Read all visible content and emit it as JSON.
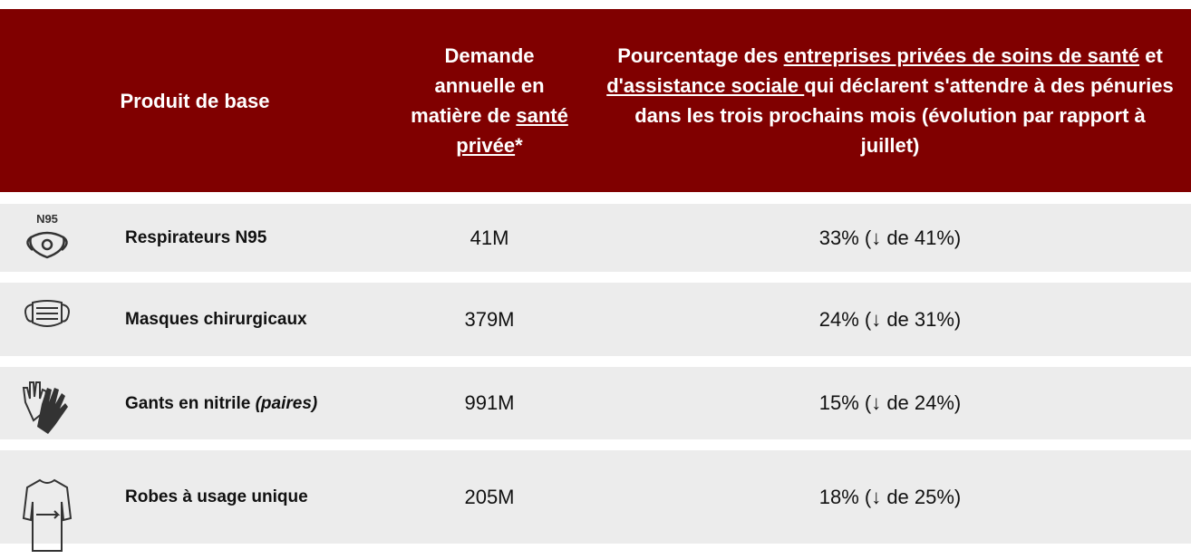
{
  "table": {
    "header": [
      {
        "parts": [
          {
            "text": "Produit de base",
            "underline": false
          }
        ]
      },
      {
        "parts": [
          {
            "text": "Demande annuelle en matière de ",
            "underline": false
          },
          {
            "text": "santé privée",
            "underline": true
          },
          {
            "text": "*",
            "underline": false
          }
        ]
      },
      {
        "parts": [
          {
            "text": "Pourcentage des ",
            "underline": false
          },
          {
            "text": "entreprises privées de soins de santé",
            "underline": true
          },
          {
            "text": " et ",
            "underline": false
          },
          {
            "text": "d'assistance sociale ",
            "underline": true
          },
          {
            "text": "qui déclarent s'attendre à des pénuries dans les trois prochains mois (évolution par rapport à juillet)",
            "underline": false
          }
        ]
      }
    ],
    "rows": [
      {
        "icon_text": "N95",
        "product": [
          {
            "text": "Respirateurs N95",
            "italic": false
          }
        ],
        "demand": "41M",
        "shortage": "33% (↓ de 41%)"
      },
      {
        "product": [
          {
            "text": "Masques chirurgicaux",
            "italic": false
          }
        ],
        "demand": "379M",
        "shortage": "24% (↓ de 31%)"
      },
      {
        "product": [
          {
            "text": "Gants en nitrile ",
            "italic": false
          },
          {
            "text": "(paires)",
            "italic": true
          }
        ],
        "demand": "991M",
        "shortage": "15% (↓ de 24%)"
      },
      {
        "product": [
          {
            "text": "Robes à usage unique",
            "italic": false
          }
        ],
        "demand": "205M",
        "shortage": "18% (↓ de 25%)"
      }
    ]
  }
}
